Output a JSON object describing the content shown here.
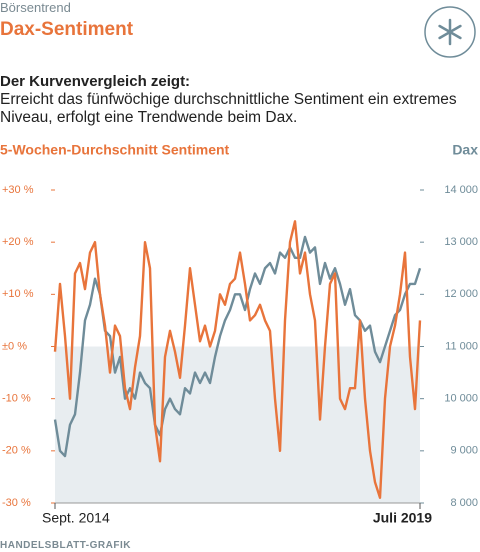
{
  "header": {
    "kicker": "Börsentrend",
    "title": "Dax-Sentiment"
  },
  "intro": {
    "lead": "Der Kurvenvergleich zeigt:",
    "text": "Erreicht das fünfwöchige durchschnittliche Sentiment ein extremes Niveau, erfolgt eine Trendwende beim Dax."
  },
  "chart_data": {
    "type": "line",
    "y_label": "5-Wochen-Durchschnitt Sentiment",
    "y2_label": "Dax",
    "categories": [
      "Sept. 2014",
      null,
      null,
      null,
      null,
      null,
      null,
      null,
      null,
      null,
      null,
      null,
      null,
      null,
      null,
      null,
      null,
      null,
      null,
      null,
      null,
      null,
      null,
      null,
      null,
      null,
      null,
      null,
      null,
      null,
      null,
      null,
      null,
      null,
      null,
      null,
      null,
      null,
      null,
      null,
      null,
      null,
      null,
      null,
      null,
      null,
      null,
      null,
      null,
      null,
      null,
      null,
      null,
      null,
      null,
      null,
      null,
      null,
      null,
      null,
      null,
      null,
      null,
      null,
      null,
      null,
      null,
      null,
      null,
      null,
      null,
      null,
      null,
      "Juli 2019"
    ],
    "series": [
      {
        "name": "5-Wochen-Durchschnitt Sentiment",
        "color": "#e8743b",
        "axis": "y",
        "values": [
          -1,
          12,
          2,
          -10,
          14,
          16,
          11,
          18,
          20,
          10,
          4,
          -5,
          4,
          2,
          -8,
          -12,
          -4,
          2,
          20,
          15,
          -15,
          -22,
          -2,
          3,
          -1,
          -6,
          4,
          15,
          8,
          1,
          4,
          0,
          3,
          10,
          8,
          12,
          13,
          18,
          12,
          5,
          6,
          8,
          5,
          3,
          -10,
          -20,
          5,
          20,
          24,
          14,
          18,
          10,
          5,
          -14,
          0,
          12,
          14,
          -10,
          -12,
          -8,
          -8,
          5,
          -10,
          -20,
          -26,
          -29,
          -10,
          0,
          4,
          10,
          18,
          -2,
          -12,
          5
        ]
      },
      {
        "name": "Dax",
        "color": "#6f8c99",
        "axis": "y2",
        "values": [
          9600,
          9000,
          8900,
          9500,
          9700,
          10500,
          11500,
          11800,
          12300,
          12000,
          11300,
          11200,
          10500,
          10800,
          10000,
          10200,
          10000,
          10500,
          10300,
          10200,
          9500,
          9300,
          9800,
          10000,
          9800,
          9700,
          10200,
          10100,
          10500,
          10300,
          10500,
          10300,
          10800,
          11200,
          11500,
          11700,
          12000,
          12000,
          11700,
          12100,
          12400,
          12200,
          12500,
          12600,
          12400,
          12800,
          12700,
          12900,
          12700,
          12700,
          13100,
          12800,
          12900,
          12200,
          12600,
          12300,
          12500,
          12200,
          11800,
          12100,
          11600,
          11500,
          11300,
          11400,
          10900,
          10700,
          11000,
          11300,
          11600,
          11700,
          12000,
          12200,
          12200,
          12500
        ]
      }
    ],
    "ylim": [
      -30,
      30
    ],
    "yticks": [
      {
        "value": 30,
        "label": "+30 %"
      },
      {
        "value": 20,
        "label": "+20 %"
      },
      {
        "value": 10,
        "label": "+10 %"
      },
      {
        "value": 0,
        "label": "±0 %"
      },
      {
        "value": -10,
        "label": "-10 %"
      },
      {
        "value": -20,
        "label": "-20 %"
      },
      {
        "value": -30,
        "label": "-30 %"
      }
    ],
    "y2lim": [
      8000,
      14000
    ],
    "y2ticks": [
      {
        "value": 14000,
        "label": "14 000"
      },
      {
        "value": 13000,
        "label": "13 000"
      },
      {
        "value": 12000,
        "label": "12 000"
      },
      {
        "value": 11000,
        "label": "11 000"
      },
      {
        "value": 10000,
        "label": "10 000"
      },
      {
        "value": 9000,
        "label": "9 000"
      },
      {
        "value": 8000,
        "label": "8 000"
      }
    ],
    "shade_below_zero": "#e8edf0"
  },
  "footer": {
    "source": "HANDELSBLATT-GRAFIK"
  }
}
